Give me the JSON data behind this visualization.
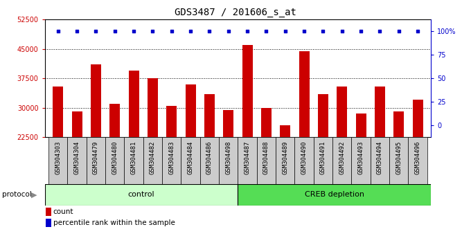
{
  "title": "GDS3487 / 201606_s_at",
  "samples": [
    "GSM304303",
    "GSM304304",
    "GSM304479",
    "GSM304480",
    "GSM304481",
    "GSM304482",
    "GSM304483",
    "GSM304484",
    "GSM304486",
    "GSM304498",
    "GSM304487",
    "GSM304488",
    "GSM304489",
    "GSM304490",
    "GSM304491",
    "GSM304492",
    "GSM304493",
    "GSM304494",
    "GSM304495",
    "GSM304496"
  ],
  "counts": [
    35500,
    29000,
    41000,
    31000,
    39500,
    37500,
    30500,
    36000,
    33500,
    29500,
    46000,
    30000,
    25500,
    44500,
    33500,
    35500,
    28500,
    35500,
    29000,
    32000
  ],
  "percentile_ranks": [
    100,
    100,
    100,
    100,
    100,
    100,
    100,
    100,
    100,
    100,
    100,
    100,
    100,
    100,
    100,
    100,
    100,
    100,
    100,
    100
  ],
  "control_count": 10,
  "ylim_left": [
    22500,
    52500
  ],
  "yticks_left": [
    22500,
    30000,
    37500,
    45000,
    52500
  ],
  "yticks_right": [
    0,
    25,
    50,
    75,
    100
  ],
  "bar_color": "#cc0000",
  "dot_color": "#0000cc",
  "control_color": "#ccffcc",
  "creb_color": "#55dd55",
  "plot_bg": "#ffffff",
  "sample_cell_bg": "#cccccc",
  "grid_color": "#000000",
  "title_fontsize": 10,
  "label_fontsize": 6.5,
  "tick_fontsize": 7,
  "legend_fontsize": 7.5
}
